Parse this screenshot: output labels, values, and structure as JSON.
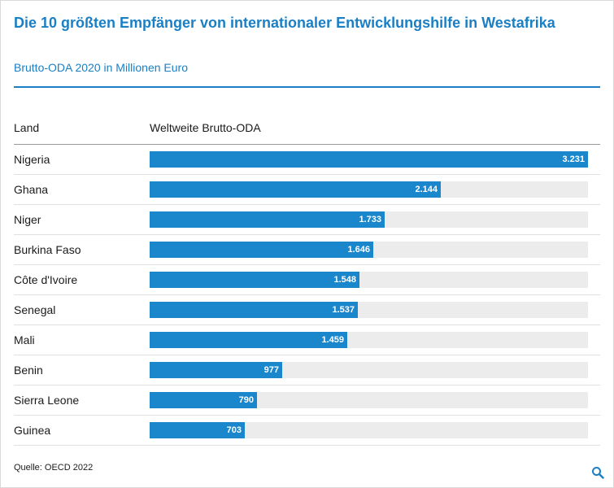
{
  "chart_data": {
    "type": "bar",
    "title": "Die 10 größten Empfänger von internationaler Entwicklungshilfe in Westafrika",
    "subtitle": "Brutto-ODA 2020 in Millionen Euro",
    "column_headers": {
      "category": "Land",
      "value": "Weltweite Brutto-ODA"
    },
    "categories": [
      "Nigeria",
      "Ghana",
      "Niger",
      "Burkina Faso",
      "Côte d'Ivoire",
      "Senegal",
      "Mali",
      "Benin",
      "Sierra Leone",
      "Guinea"
    ],
    "values": [
      3231,
      2144,
      1733,
      1646,
      1548,
      1537,
      1459,
      977,
      790,
      703
    ],
    "value_labels": [
      "3.231",
      "2.144",
      "1.733",
      "1.646",
      "1.548",
      "1.537",
      "1.459",
      "977",
      "790",
      "703"
    ],
    "xlim": [
      0,
      3231
    ],
    "source": "Quelle: OECD 2022",
    "bar_color": "#1a86cc",
    "track_color": "#ececec",
    "title_color": "#1a7fc4"
  },
  "icons": {
    "zoom": "magnifier-icon"
  }
}
